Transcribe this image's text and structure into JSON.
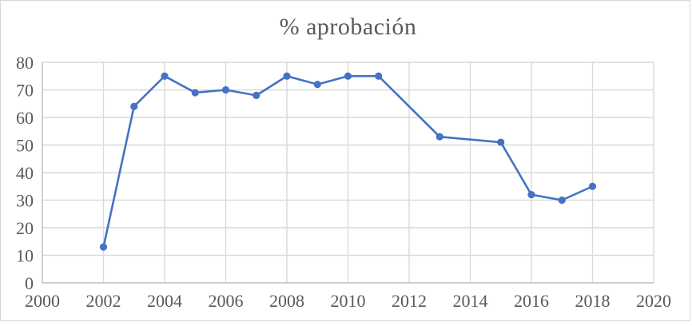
{
  "chart_data": {
    "type": "line",
    "title": "% aprobación",
    "series": [
      {
        "name": "% aprobación",
        "x": [
          2002,
          2003,
          2004,
          2005,
          2006,
          2007,
          2008,
          2009,
          2010,
          2011,
          2013,
          2015,
          2016,
          2017,
          2018
        ],
        "values": [
          13,
          64,
          75,
          69,
          70,
          68,
          75,
          72,
          75,
          75,
          53,
          51,
          32,
          30,
          35
        ]
      }
    ],
    "xlabel": "",
    "ylabel": "",
    "xlim": [
      2000,
      2020
    ],
    "ylim": [
      0,
      80
    ],
    "x_ticks": [
      2000,
      2002,
      2004,
      2006,
      2008,
      2010,
      2012,
      2014,
      2016,
      2018,
      2020
    ],
    "y_ticks": [
      0,
      10,
      20,
      30,
      40,
      50,
      60,
      70,
      80
    ],
    "grid": true,
    "legend_position": "none",
    "colors": {
      "line": "#4472C4",
      "marker": "#4472C4",
      "gridline": "#d9d9d9",
      "axis_line": "#bfbfbf",
      "tick_text": "#595959",
      "title_text": "#595959",
      "background": "#ffffff"
    }
  }
}
